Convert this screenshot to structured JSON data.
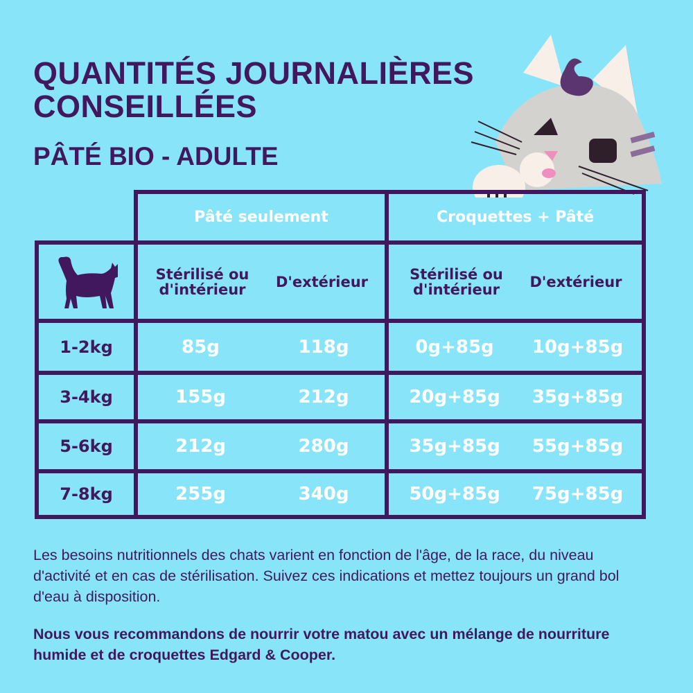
{
  "header": {
    "title": "QUANTITÉS JOURNALIÈRES CONSEILLÉES",
    "subtitle": "PÂTÉ BIO - ADULTE"
  },
  "table": {
    "groups": [
      "Pâté seulement",
      "Croquettes + Pâté"
    ],
    "subheaders": [
      "Stérilisé ou d'intérieur",
      "D'extérieur",
      "Stérilisé ou d'intérieur",
      "D'extérieur"
    ],
    "corner_icon": "cat-silhouette-icon",
    "rows": [
      {
        "label": "1-2kg",
        "values": [
          "85g",
          "118g",
          "0g+85g",
          "10g+85g"
        ]
      },
      {
        "label": "3-4kg",
        "values": [
          "155g",
          "212g",
          "20g+85g",
          "35g+85g"
        ]
      },
      {
        "label": "5-6kg",
        "values": [
          "212g",
          "280g",
          "35g+85g",
          "55g+85g"
        ]
      },
      {
        "label": "7-8kg",
        "values": [
          "255g",
          "340g",
          "50g+85g",
          "75g+85g"
        ]
      }
    ]
  },
  "footer": {
    "note": "Les besoins nutritionnels des chats varient en fonction de l'âge, de la race, du niveau d'activité et en cas de stérilisation. Suivez ces indications et mettez toujours un grand bol d'eau à disposition.",
    "recommendation": "Nous vous recommandons de nourrir votre matou avec un mélange de nourriture humide et de croquettes Edgard & Cooper."
  },
  "colors": {
    "background": "#88e5f9",
    "primary": "#41185e",
    "value_text": "#ffffff"
  }
}
